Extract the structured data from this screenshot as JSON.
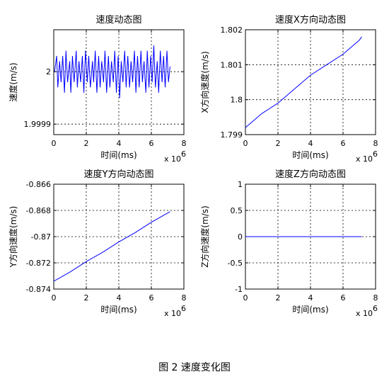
{
  "caption": "图 2  速度变化图",
  "chart_data": [
    {
      "type": "line",
      "title": "速度动态图",
      "xlabel": "时间(ms)",
      "ylabel": "速度(m/s)",
      "x_exponent_label": "x 10",
      "x_exponent": "6",
      "xlim": [
        0,
        8
      ],
      "ylim": [
        1.99988,
        2.00008
      ],
      "xticks": [
        "0",
        "2",
        "4",
        "6",
        "8"
      ],
      "yticks": [
        {
          "value": 1.9999,
          "label": "1.9999"
        },
        {
          "value": 2.0,
          "label": "2"
        }
      ],
      "grid": true,
      "color": "#0000ff",
      "series": [
        {
          "x": [
            0.05,
            0.18,
            0.25,
            0.36,
            0.45,
            0.55,
            0.66,
            0.75,
            0.85,
            0.98,
            1.05,
            1.15,
            1.25,
            1.38,
            1.45,
            1.55,
            1.65,
            1.76,
            1.85,
            1.95,
            2.06,
            2.15,
            2.25,
            2.38,
            2.45,
            2.55,
            2.65,
            2.76,
            2.85,
            2.95,
            3.06,
            3.15,
            3.25,
            3.36,
            3.45,
            3.55,
            3.66,
            3.75,
            3.85,
            3.96,
            4.05,
            4.15,
            4.25,
            4.36,
            4.45,
            4.55,
            4.66,
            4.75,
            4.85,
            4.96,
            5.05,
            5.15,
            5.25,
            5.36,
            5.45,
            5.55,
            5.66,
            5.75,
            5.85,
            5.96,
            6.05,
            6.15,
            6.25,
            6.36,
            6.45,
            6.55,
            6.66,
            6.75,
            6.85,
            6.96,
            7.05,
            7.15
          ],
          "y": [
            2.0,
            2.00003,
            1.99997,
            2.00002,
            1.99998,
            2.00003,
            1.99996,
            2.00004,
            1.99998,
            2.00002,
            1.99996,
            2.00003,
            1.99998,
            2.00004,
            1.99997,
            2.00002,
            1.99998,
            2.00003,
            1.99996,
            2.00004,
            1.99998,
            2.00003,
            1.99997,
            2.00002,
            1.99998,
            2.00004,
            1.99996,
            2.00003,
            1.99997,
            2.00002,
            1.99998,
            2.00004,
            1.99996,
            2.00003,
            1.99997,
            2.00002,
            1.99998,
            2.00004,
            1.99996,
            2.00003,
            1.99995,
            2.00002,
            1.99998,
            2.00004,
            1.99997,
            2.00003,
            1.99997,
            2.00002,
            1.99998,
            2.00004,
            1.99996,
            2.00003,
            1.99997,
            2.00004,
            1.99998,
            2.00002,
            1.99996,
            2.00004,
            1.99997,
            2.00003,
            1.99998,
            2.00005,
            1.99997,
            2.00002,
            1.99996,
            2.00004,
            1.99998,
            2.00003,
            1.99997,
            2.00004,
            1.99998,
            2.00001
          ]
        }
      ]
    },
    {
      "type": "line",
      "title": "速度X方向动态图",
      "xlabel": "时间(ms)",
      "ylabel": "X方向速度(m/s)",
      "x_exponent_label": "x 10",
      "x_exponent": "6",
      "xlim": [
        0,
        8
      ],
      "ylim": [
        1.799,
        1.802
      ],
      "xticks": [
        "0",
        "2",
        "4",
        "6",
        "8"
      ],
      "yticks": [
        {
          "value": 1.799,
          "label": "1.799"
        },
        {
          "value": 1.8,
          "label": "1.8"
        },
        {
          "value": 1.801,
          "label": "1.801"
        },
        {
          "value": 1.802,
          "label": "1.802"
        }
      ],
      "grid": true,
      "color": "#0000ff",
      "series": [
        {
          "x": [
            0,
            1,
            2,
            3,
            4,
            5,
            6,
            7,
            7.15
          ],
          "y": [
            1.7992,
            1.7996,
            1.7999,
            1.8003,
            1.8007,
            1.801,
            1.8013,
            1.8017,
            1.8018
          ]
        }
      ]
    },
    {
      "type": "line",
      "title": "速度Y方向动态图",
      "xlabel": "时间(ms)",
      "ylabel": "Y方向速度(m/s)",
      "x_exponent_label": "x 10",
      "x_exponent": "6",
      "xlim": [
        0,
        8
      ],
      "ylim": [
        -0.874,
        -0.866
      ],
      "xticks": [
        "0",
        "2",
        "4",
        "6",
        "8"
      ],
      "yticks": [
        {
          "value": -0.874,
          "label": "-0.874"
        },
        {
          "value": -0.872,
          "label": "-0.872"
        },
        {
          "value": -0.87,
          "label": "-0.87"
        },
        {
          "value": -0.868,
          "label": "-0.868"
        },
        {
          "value": -0.866,
          "label": "-0.866"
        }
      ],
      "grid": true,
      "color": "#0000ff",
      "series": [
        {
          "x": [
            0,
            1,
            2,
            3,
            4,
            5,
            6,
            7,
            7.15
          ],
          "y": [
            -0.8734,
            -0.8727,
            -0.8719,
            -0.8712,
            -0.8704,
            -0.8697,
            -0.8689,
            -0.8682,
            -0.8681
          ]
        }
      ]
    },
    {
      "type": "line",
      "title": "速度Z方向动态图",
      "xlabel": "时间(ms)",
      "ylabel": "Z方向速度(m/s)",
      "x_exponent_label": "x 10",
      "x_exponent": "6",
      "xlim": [
        0,
        8
      ],
      "ylim": [
        -1,
        1
      ],
      "xticks": [
        "0",
        "2",
        "4",
        "6",
        "8"
      ],
      "yticks": [
        {
          "value": -1,
          "label": "-1"
        },
        {
          "value": -0.5,
          "label": "-0.5"
        },
        {
          "value": 0,
          "label": "0"
        },
        {
          "value": 0.5,
          "label": "0.5"
        },
        {
          "value": 1,
          "label": "1"
        }
      ],
      "grid": true,
      "color": "#0000ff",
      "series": [
        {
          "x": [
            0,
            7.15
          ],
          "y": [
            0,
            0
          ]
        }
      ]
    }
  ]
}
